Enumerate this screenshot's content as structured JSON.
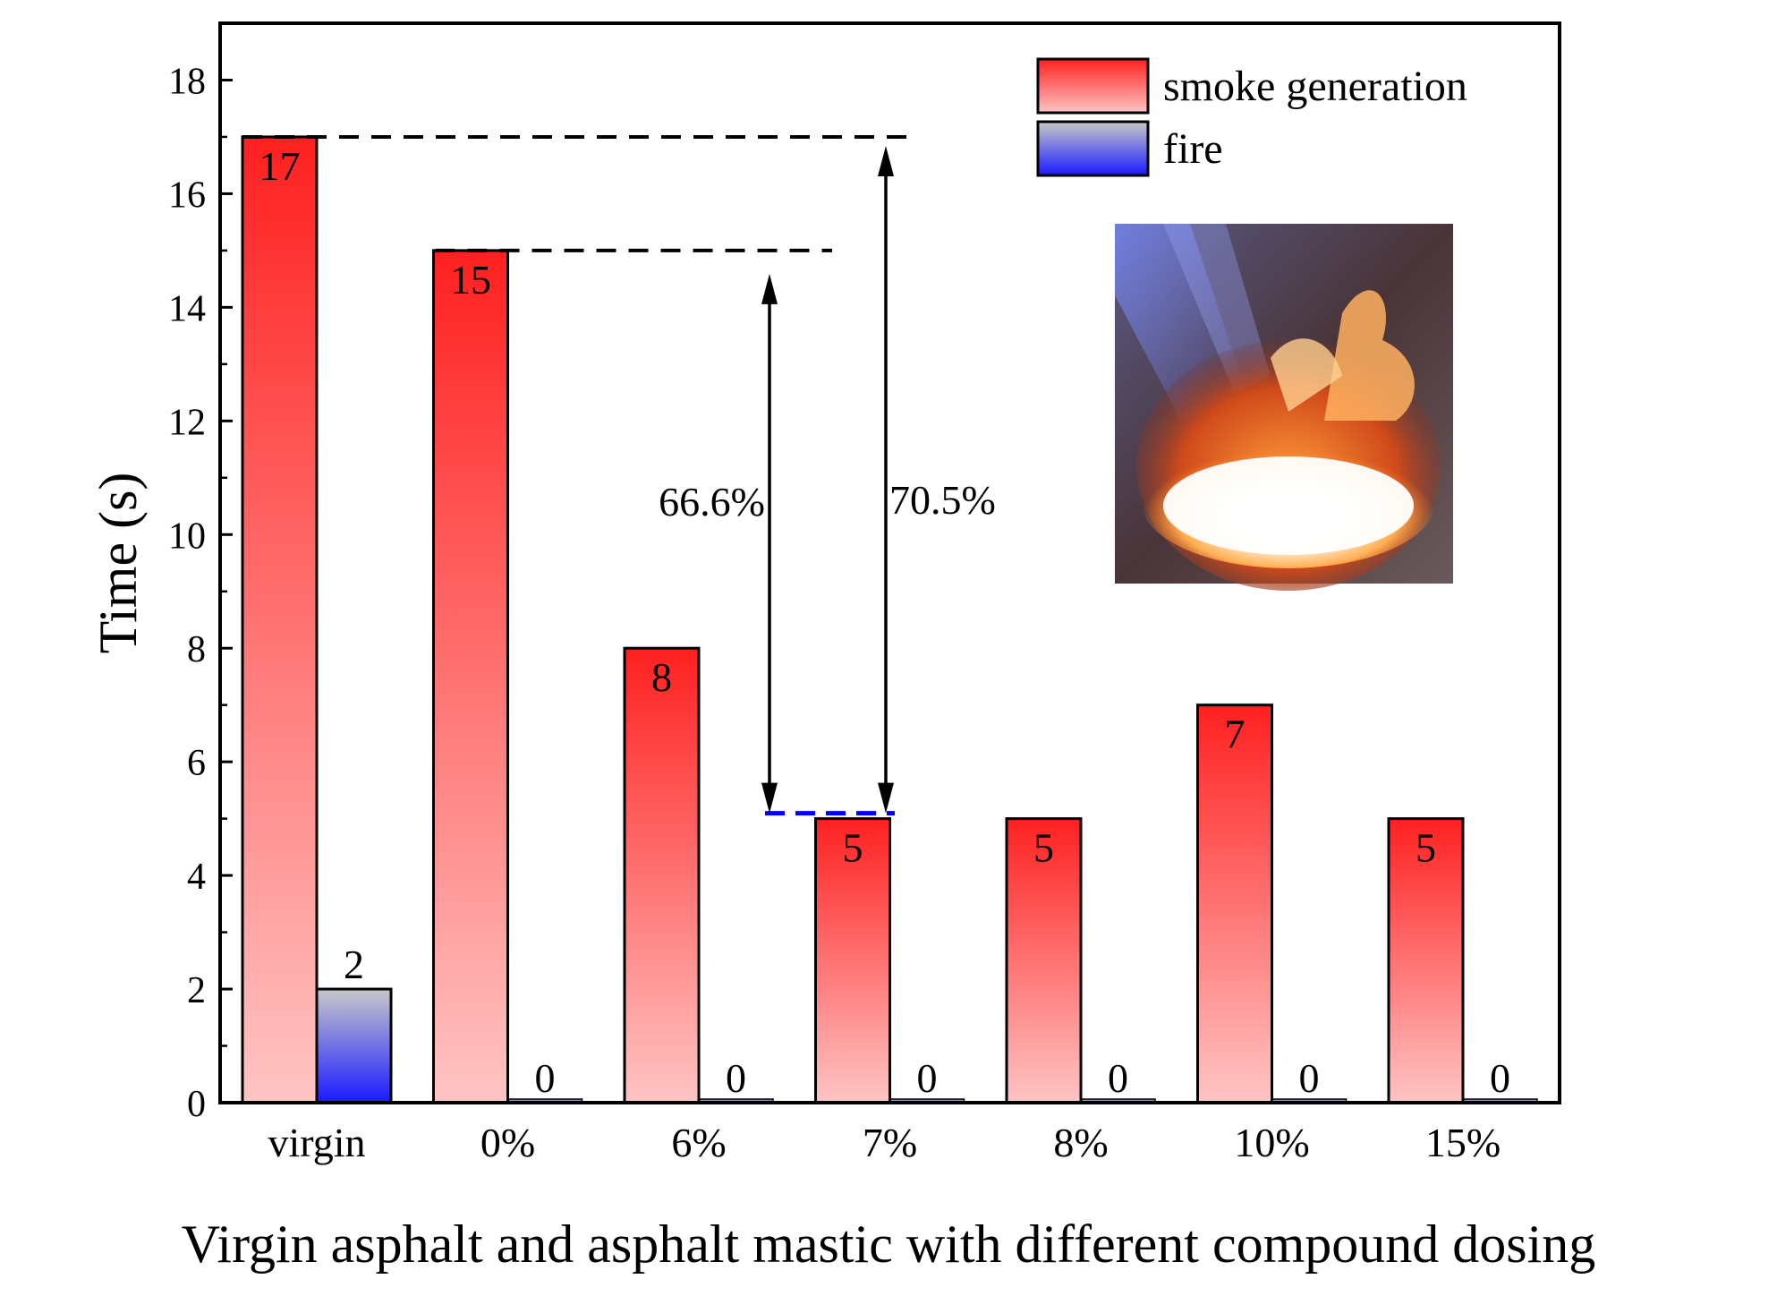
{
  "chart_data": {
    "type": "bar",
    "categories": [
      "virgin",
      "0%",
      "6%",
      "7%",
      "8%",
      "10%",
      "15%"
    ],
    "series": [
      {
        "name": "smoke generation",
        "values": [
          17,
          15,
          8,
          5,
          5,
          7,
          5
        ]
      },
      {
        "name": "fire",
        "values": [
          2,
          0,
          0,
          0,
          0,
          0,
          0
        ]
      }
    ],
    "ylabel": "Time (s)",
    "xlabel": "Virgin asphalt and asphalt mastic with different compound dosing",
    "ylim": [
      0,
      19
    ],
    "yticks": [
      0,
      2,
      4,
      6,
      8,
      10,
      12,
      14,
      16,
      18
    ],
    "grid": false,
    "legend": "top-right",
    "colors": {
      "smoke_top": "#ff2020",
      "smoke_bottom": "#ffc4c4",
      "fire_top": "#c8c8c8",
      "fire_bottom": "#1a1aff",
      "reference_line_upper": "#000000",
      "reference_line_lower": "#0000ff"
    },
    "annotations": [
      {
        "text": "66.6%",
        "from_value": 15,
        "to_value": 5
      },
      {
        "text": "70.5%",
        "from_value": 17,
        "to_value": 5
      }
    ],
    "inset": "flame-photo"
  }
}
